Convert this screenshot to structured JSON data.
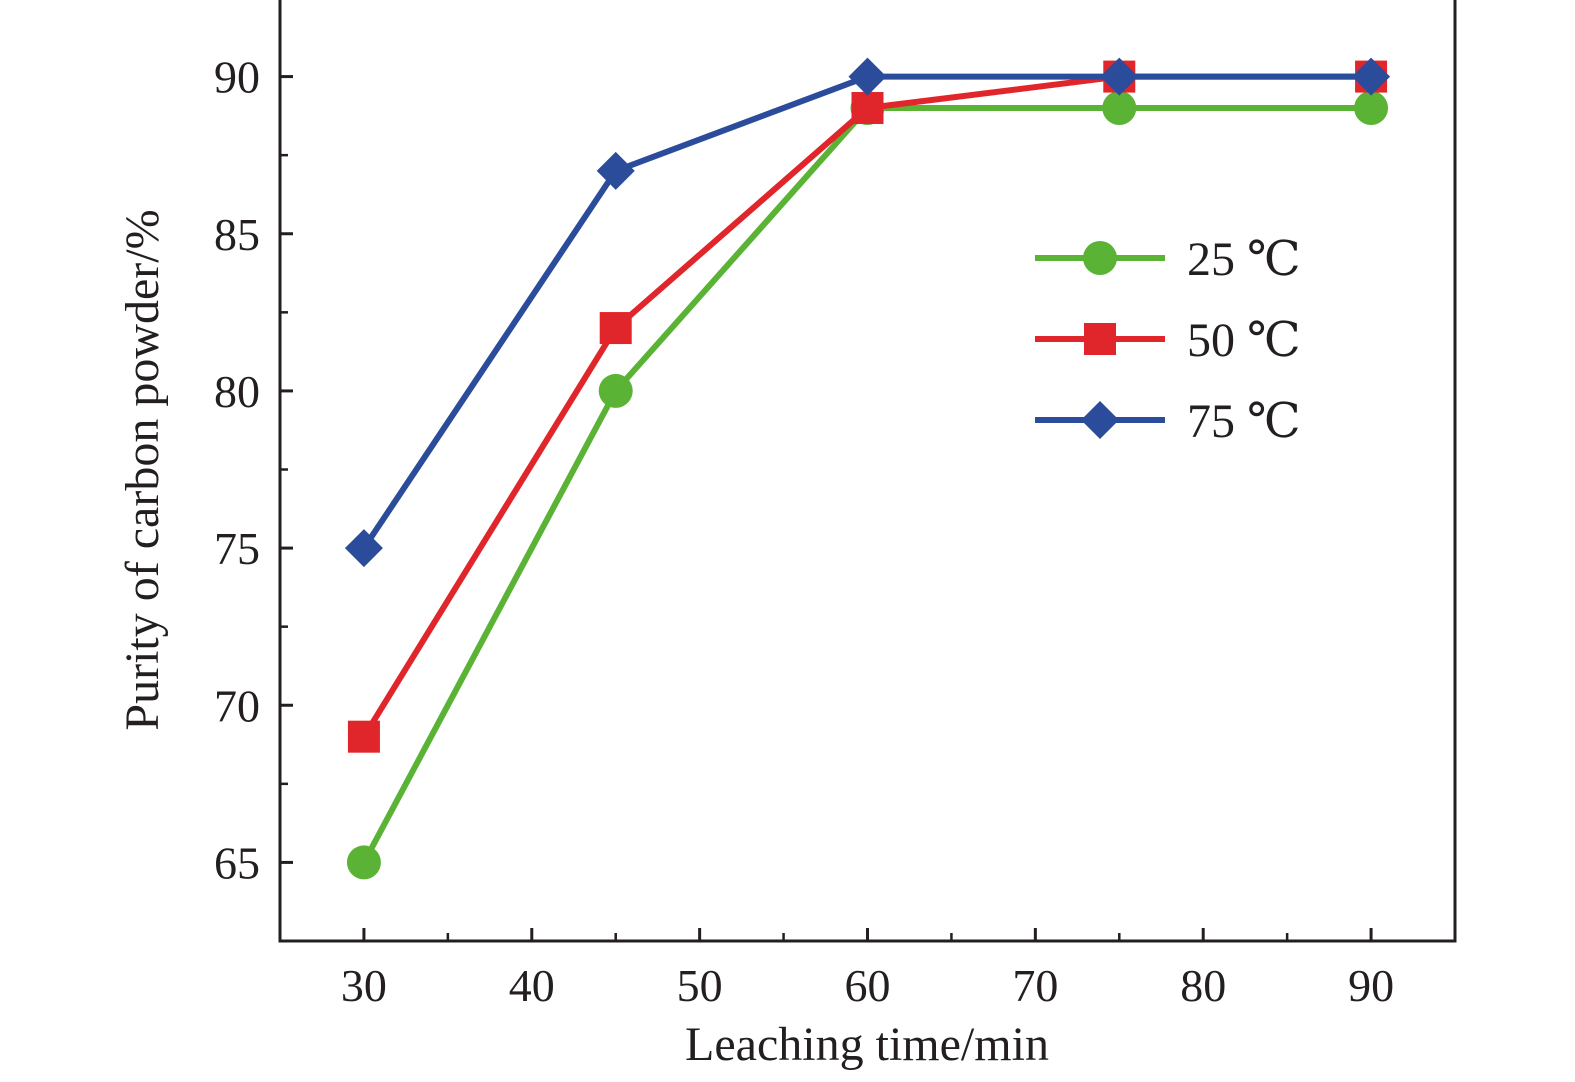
{
  "chart_data": {
    "type": "line",
    "xlabel": "Leaching time/min",
    "ylabel": "Purity of carbon powder/%",
    "x": [
      30,
      45,
      60,
      75,
      90
    ],
    "xlim": [
      25,
      95
    ],
    "ylim": [
      62.5,
      92.5
    ],
    "xticks": [
      30,
      40,
      50,
      60,
      70,
      80,
      90
    ],
    "yticks": [
      65,
      70,
      75,
      80,
      85,
      90
    ],
    "grid": false,
    "legend_position": "right",
    "series": [
      {
        "name": "25 ℃",
        "color": "#5bb336",
        "marker": "circle",
        "values": [
          65,
          80,
          89,
          89,
          89
        ]
      },
      {
        "name": "50 ℃",
        "color": "#e0262b",
        "marker": "square",
        "values": [
          69,
          82,
          89,
          90,
          90
        ]
      },
      {
        "name": "75 ℃",
        "color": "#2b4b9b",
        "marker": "diamond",
        "values": [
          75,
          87,
          90,
          90,
          90
        ]
      }
    ]
  }
}
